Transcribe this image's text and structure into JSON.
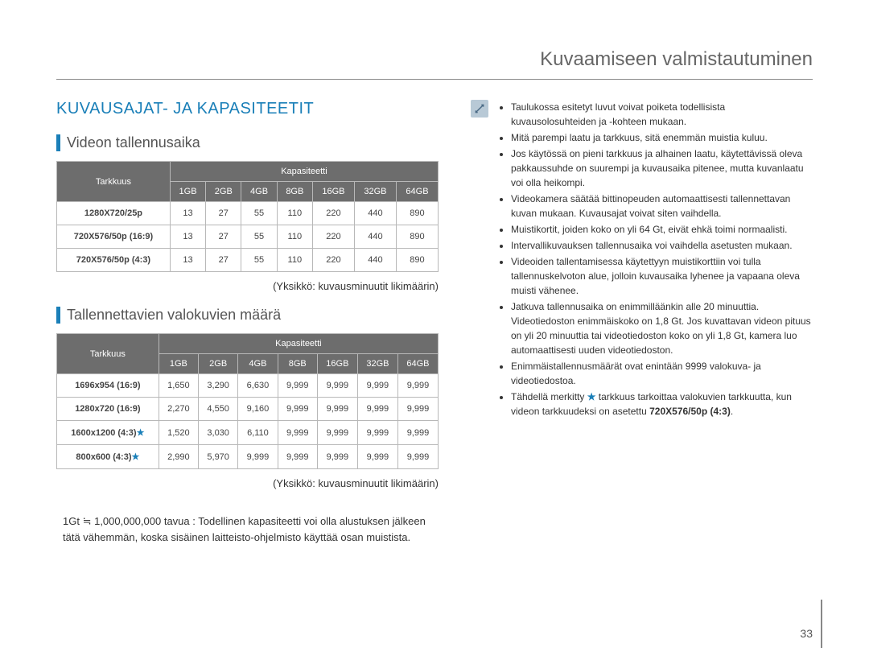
{
  "page": {
    "header_title": "Kuvaamiseen valmistautuminen",
    "number": "33"
  },
  "left": {
    "main_heading": "KUVAUSAJAT- JA KAPASITEETIT",
    "section1": {
      "title": "Videon tallennusaika",
      "col_tarkkuus": "Tarkkuus",
      "col_kapasiteetti": "Kapasiteetti",
      "cols": [
        "1GB",
        "2GB",
        "4GB",
        "8GB",
        "16GB",
        "32GB",
        "64GB"
      ],
      "rows": [
        {
          "label": "1280X720/25p",
          "vals": [
            "13",
            "27",
            "55",
            "110",
            "220",
            "440",
            "890"
          ]
        },
        {
          "label": "720X576/50p (16:9)",
          "vals": [
            "13",
            "27",
            "55",
            "110",
            "220",
            "440",
            "890"
          ]
        },
        {
          "label": "720X576/50p (4:3)",
          "vals": [
            "13",
            "27",
            "55",
            "110",
            "220",
            "440",
            "890"
          ]
        }
      ],
      "unit_note": "(Yksikkö: kuvausminuutit likimäärin)"
    },
    "section2": {
      "title": "Tallennettavien valokuvien määrä",
      "col_tarkkuus": "Tarkkuus",
      "col_kapasiteetti": "Kapasiteetti",
      "cols": [
        "1GB",
        "2GB",
        "4GB",
        "8GB",
        "16GB",
        "32GB",
        "64GB"
      ],
      "rows": [
        {
          "label": "1696x954 (16:9)",
          "star": false,
          "vals": [
            "1,650",
            "3,290",
            "6,630",
            "9,999",
            "9,999",
            "9,999",
            "9,999"
          ]
        },
        {
          "label": "1280x720 (16:9)",
          "star": false,
          "vals": [
            "2,270",
            "4,550",
            "9,160",
            "9,999",
            "9,999",
            "9,999",
            "9,999"
          ]
        },
        {
          "label": "1600x1200 (4:3)",
          "star": true,
          "vals": [
            "1,520",
            "3,030",
            "6,110",
            "9,999",
            "9,999",
            "9,999",
            "9,999"
          ]
        },
        {
          "label": "800x600 (4:3)",
          "star": true,
          "vals": [
            "2,990",
            "5,970",
            "9,999",
            "9,999",
            "9,999",
            "9,999",
            "9,999"
          ]
        }
      ],
      "unit_note": "(Yksikkö: kuvausminuutit likimäärin)"
    },
    "capacity_note": "1Gt ≒ 1,000,000,000 tavua : Todellinen kapasiteetti voi olla alustuksen jälkeen tätä vähemmän, koska sisäinen laitteisto-ohjelmisto käyttää osan muistista."
  },
  "right": {
    "bullets": [
      "Taulukossa esitetyt luvut voivat poiketa todellisista kuvausolosuhteiden ja -kohteen mukaan.",
      "Mitä parempi laatu ja tarkkuus, sitä enemmän muistia kuluu.",
      "Jos käytössä on pieni tarkkuus ja alhainen laatu, käytettävissä oleva pakkaussuhde on suurempi ja kuvausaika pitenee, mutta kuvanlaatu voi olla heikompi.",
      "Videokamera säätää bittinopeuden automaattisesti tallennettavan kuvan mukaan. Kuvausajat voivat siten vaihdella.",
      "Muistikortit, joiden koko on yli 64 Gt, eivät ehkä toimi normaalisti.",
      "Intervallikuvauksen tallennusaika voi vaihdella asetusten mukaan.",
      "Videoiden tallentamisessa käytettyyn muistikorttiin voi tulla tallennuskelvoton alue, jolloin kuvausaika lyhenee ja vapaana oleva muisti vähenee.",
      "Jatkuva tallennusaika on enimmilläänkin alle 20 minuuttia. Videotiedoston enimmäiskoko on 1,8 Gt. Jos kuvattavan videon pituus on yli 20 minuuttia tai videotiedoston koko on yli 1,8 Gt, kamera luo automaattisesti uuden videotiedoston.",
      "Enimmäistallennusmäärät ovat enintään 9999 valokuva- ja videotiedostoa.",
      "Tähdellä merkitty ★ tarkkuus tarkoittaa valokuvien tarkkuutta, kun videon tarkkuudeksi on asetettu 720X576/50p (4:3)."
    ],
    "last_bullet_bold": "720X576/50p (4:3)"
  },
  "colors": {
    "heading_blue": "#1a7fb8",
    "header_gray": "#6d6d6d",
    "border_gray": "#b8b8b8",
    "icon_bg": "#b8c9d6"
  }
}
